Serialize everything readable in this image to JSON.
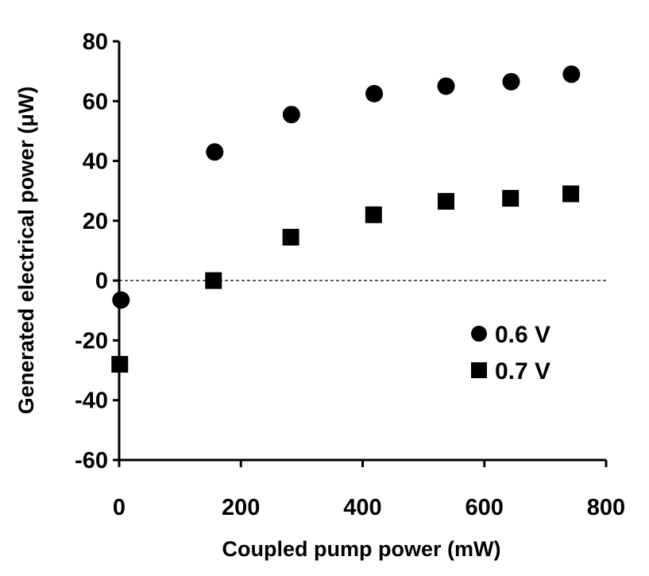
{
  "chart_data": {
    "type": "scatter",
    "title": "",
    "xlabel": "Coupled pump power (mW)",
    "ylabel": "Generated electrical power (μW)",
    "xlim": [
      0,
      800
    ],
    "ylim": [
      -60,
      80
    ],
    "xticks": [
      0,
      200,
      400,
      600,
      800
    ],
    "yticks": [
      80,
      60,
      40,
      20,
      0,
      -20,
      -40,
      -60
    ],
    "xtick_labels": [
      "0",
      "200",
      "400",
      "600",
      "800"
    ],
    "ytick_labels": [
      "80",
      "60",
      "40",
      "20",
      "0",
      "-20",
      "-40",
      "-60"
    ],
    "grid": false,
    "legend_position": "bottom-right",
    "reference_line": {
      "y": 0,
      "style": "dashed"
    },
    "series": [
      {
        "name": "0.6 V",
        "marker": "circle",
        "color": "#000000",
        "x": [
          3,
          157,
          283,
          419,
          537,
          644,
          743
        ],
        "y": [
          -6.5,
          43,
          55.5,
          62.5,
          65,
          66.5,
          69
        ]
      },
      {
        "name": "0.7 V",
        "marker": "square",
        "color": "#000000",
        "x": [
          1,
          155,
          282,
          418,
          537,
          643,
          742
        ],
        "y": [
          -28,
          0,
          14.5,
          22,
          26.5,
          27.5,
          29
        ]
      }
    ]
  }
}
